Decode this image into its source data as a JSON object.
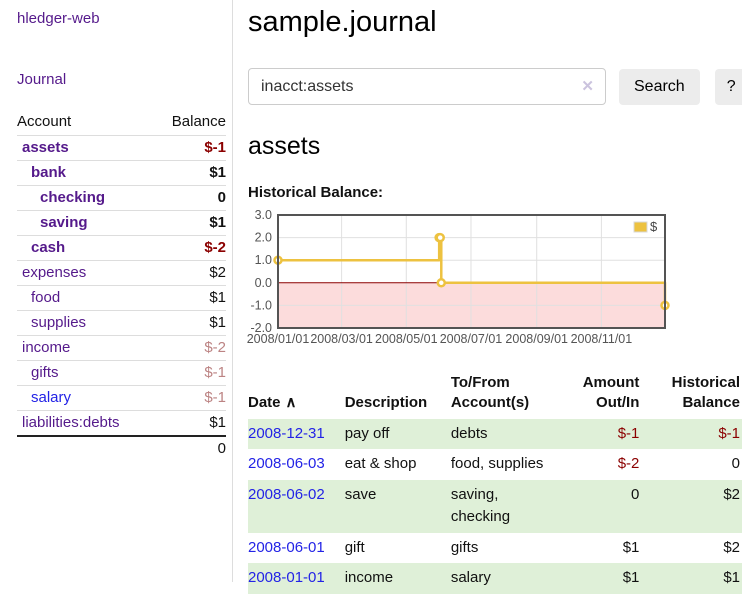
{
  "app": {
    "brand": "hledger-web",
    "nav": {
      "journal": "Journal"
    }
  },
  "colors": {
    "link_purple": "#551a8b",
    "link_blue": "#2323e6",
    "negative_dark_red": "#8b0000",
    "negative_light_red": "#bc8383",
    "row_stripe_green": "#dff0d8",
    "button_gray": "#ececec"
  },
  "sidebar": {
    "header": {
      "account": "Account",
      "balance": "Balance"
    },
    "accounts": [
      {
        "name": "assets",
        "balance": "$-1"
      },
      {
        "name": "bank",
        "balance": "$1"
      },
      {
        "name": "checking",
        "balance": "0"
      },
      {
        "name": "saving",
        "balance": "$1"
      },
      {
        "name": "cash",
        "balance": "$-2"
      },
      {
        "name": "expenses",
        "balance": "$2"
      },
      {
        "name": "food",
        "balance": "$1"
      },
      {
        "name": "supplies",
        "balance": "$1"
      },
      {
        "name": "income",
        "balance": "$-2"
      },
      {
        "name": "gifts",
        "balance": "$-1"
      },
      {
        "name": "salary",
        "balance": "$-1"
      },
      {
        "name": "liabilities:debts",
        "balance": "$1"
      }
    ],
    "total": "0"
  },
  "main": {
    "title": "sample.journal",
    "search": {
      "value": "inacct:assets",
      "clear_icon": "✕",
      "search_label": "Search",
      "help_label": "?"
    },
    "account_heading": "assets",
    "chart_heading": "Historical Balance:"
  },
  "chart_data": {
    "type": "line",
    "title": "Historical Balance:",
    "legend": "$",
    "x_range": [
      "2008/01/01",
      "2008/12/31"
    ],
    "ylim": [
      -2,
      3
    ],
    "yticks": [
      3,
      2,
      1,
      0,
      -1,
      -2
    ],
    "xticks": [
      "2008/01/01",
      "2008/03/01",
      "2008/05/01",
      "2008/07/01",
      "2008/09/01",
      "2008/11/01"
    ],
    "series": [
      {
        "name": "$",
        "color": "#edc240",
        "step": true,
        "points": [
          [
            "2008/01/01",
            1
          ],
          [
            "2008/06/01",
            2
          ],
          [
            "2008/06/02",
            2
          ],
          [
            "2008/06/03",
            0
          ],
          [
            "2008/12/31",
            -1
          ]
        ]
      }
    ],
    "colors": {
      "negative_region": "#fcdcdc",
      "zero_line": "#8b0000",
      "grid": "#e0e0e0",
      "border": "#545454",
      "tick_text": "#545454"
    }
  },
  "register": {
    "headers": {
      "date": "Date",
      "sort_icon": "∧",
      "description": "Description",
      "accounts": "To/From Account(s)",
      "amount": "Amount Out/In",
      "balance": "Historical Balance"
    },
    "rows": [
      {
        "date": "2008-12-31",
        "description": "pay off",
        "accounts": "debts",
        "amount": "$-1",
        "balance": "$-1"
      },
      {
        "date": "2008-06-03",
        "description": "eat & shop",
        "accounts": "food, supplies",
        "amount": "$-2",
        "balance": "0"
      },
      {
        "date": "2008-06-02",
        "description": "save",
        "accounts": "saving, checking",
        "amount": "0",
        "balance": "$2"
      },
      {
        "date": "2008-06-01",
        "description": "gift",
        "accounts": "gifts",
        "amount": "$1",
        "balance": "$2"
      },
      {
        "date": "2008-01-01",
        "description": "income",
        "accounts": "salary",
        "amount": "$1",
        "balance": "$1"
      }
    ]
  }
}
